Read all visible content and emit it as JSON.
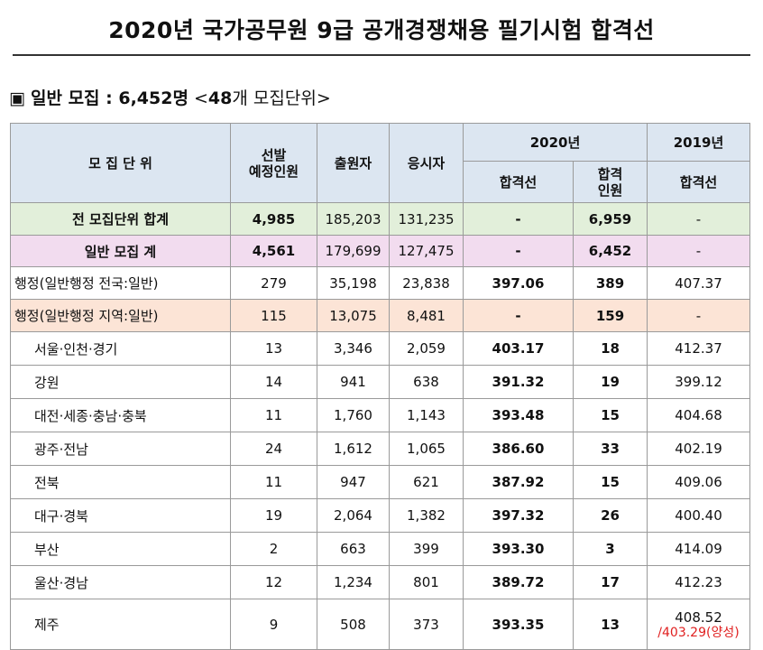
{
  "title": "2020년 국가공무원 9급 공개경쟁채용 필기시험 합격선",
  "section": {
    "marker": "▣",
    "label": "일반 모집 : 6,452명",
    "open": "<",
    "count": "48",
    "unit": "개 모집단위",
    "close": ">"
  },
  "header": {
    "unit": "모 집 단 위",
    "planned_1": "선발",
    "planned_2": "예정인원",
    "applicants": "출원자",
    "examinees": "응시자",
    "year2020": "2020년",
    "cutoff": "합격선",
    "passers_1": "합격",
    "passers_2": "인원",
    "year2019": "2019년",
    "cutoff2019": "합격선"
  },
  "rows": [
    {
      "unit": "전 모집단위 합계",
      "planned": "4,985",
      "applicants": "185,203",
      "examinees": "131,235",
      "cutoff": "-",
      "passers": "6,959",
      "cutoff2019": "-"
    },
    {
      "unit": "일반 모집 계",
      "planned": "4,561",
      "applicants": "179,699",
      "examinees": "127,475",
      "cutoff": "-",
      "passers": "6,452",
      "cutoff2019": "-"
    },
    {
      "unit": "행정(일반행정 전국:일반)",
      "planned": "279",
      "applicants": "35,198",
      "examinees": "23,838",
      "cutoff": "397.06",
      "passers": "389",
      "cutoff2019": "407.37"
    },
    {
      "unit": "행정(일반행정 지역:일반)",
      "planned": "115",
      "applicants": "13,075",
      "examinees": "8,481",
      "cutoff": "-",
      "passers": "159",
      "cutoff2019": "-"
    },
    {
      "unit": "서울·인천·경기",
      "planned": "13",
      "applicants": "3,346",
      "examinees": "2,059",
      "cutoff": "403.17",
      "passers": "18",
      "cutoff2019": "412.37"
    },
    {
      "unit": "강원",
      "planned": "14",
      "applicants": "941",
      "examinees": "638",
      "cutoff": "391.32",
      "passers": "19",
      "cutoff2019": "399.12"
    },
    {
      "unit": "대전·세종·충남·충북",
      "planned": "11",
      "applicants": "1,760",
      "examinees": "1,143",
      "cutoff": "393.48",
      "passers": "15",
      "cutoff2019": "404.68"
    },
    {
      "unit": "광주·전남",
      "planned": "24",
      "applicants": "1,612",
      "examinees": "1,065",
      "cutoff": "386.60",
      "passers": "33",
      "cutoff2019": "402.19"
    },
    {
      "unit": "전북",
      "planned": "11",
      "applicants": "947",
      "examinees": "621",
      "cutoff": "387.92",
      "passers": "15",
      "cutoff2019": "409.06"
    },
    {
      "unit": "대구·경북",
      "planned": "19",
      "applicants": "2,064",
      "examinees": "1,382",
      "cutoff": "397.32",
      "passers": "26",
      "cutoff2019": "400.40"
    },
    {
      "unit": "부산",
      "planned": "2",
      "applicants": "663",
      "examinees": "399",
      "cutoff": "393.30",
      "passers": "3",
      "cutoff2019": "414.09"
    },
    {
      "unit": "울산·경남",
      "planned": "12",
      "applicants": "1,234",
      "examinees": "801",
      "cutoff": "389.72",
      "passers": "17",
      "cutoff2019": "412.23"
    },
    {
      "unit": "제주",
      "planned": "9",
      "applicants": "508",
      "examinees": "373",
      "cutoff": "393.35",
      "passers": "13",
      "cutoff2019": "408.52",
      "cutoff2019_note": "/403.29(양성)"
    }
  ],
  "colors": {
    "header_bg": "#dce6f1",
    "total_bg": "#e2efda",
    "general_bg": "#f2dcef",
    "regional_bg": "#fce4d6",
    "note_red": "#e02020"
  }
}
